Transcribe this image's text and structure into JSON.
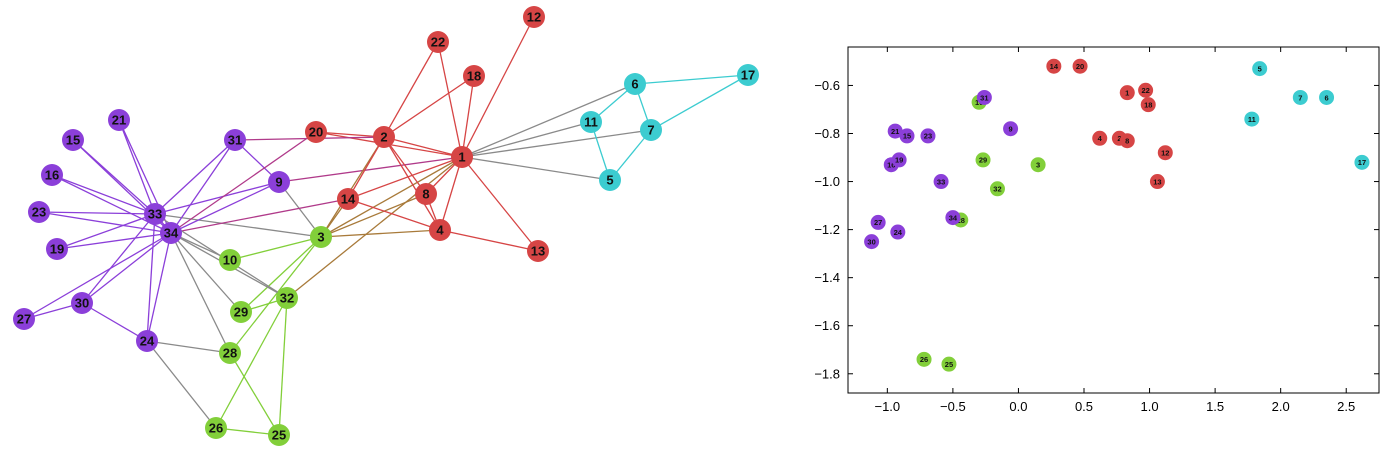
{
  "colors": {
    "purple": "#8b3fd9",
    "red": "#d64545",
    "green": "#82cf3a",
    "cyan": "#3cccd0",
    "gray": "#8a8a8a",
    "magenta": "#b03a8a",
    "brown": "#a87a3a",
    "axis": "#000000"
  },
  "graph": {
    "nodes": [
      {
        "id": "1",
        "group": "red"
      },
      {
        "id": "2",
        "group": "red"
      },
      {
        "id": "3",
        "group": "green"
      },
      {
        "id": "4",
        "group": "red"
      },
      {
        "id": "5",
        "group": "cyan"
      },
      {
        "id": "6",
        "group": "cyan"
      },
      {
        "id": "7",
        "group": "cyan"
      },
      {
        "id": "8",
        "group": "red"
      },
      {
        "id": "9",
        "group": "purple"
      },
      {
        "id": "10",
        "group": "green"
      },
      {
        "id": "11",
        "group": "cyan"
      },
      {
        "id": "12",
        "group": "red"
      },
      {
        "id": "13",
        "group": "red"
      },
      {
        "id": "14",
        "group": "red"
      },
      {
        "id": "15",
        "group": "purple"
      },
      {
        "id": "16",
        "group": "purple"
      },
      {
        "id": "17",
        "group": "cyan"
      },
      {
        "id": "18",
        "group": "red"
      },
      {
        "id": "19",
        "group": "purple"
      },
      {
        "id": "20",
        "group": "red"
      },
      {
        "id": "21",
        "group": "purple"
      },
      {
        "id": "22",
        "group": "red"
      },
      {
        "id": "23",
        "group": "purple"
      },
      {
        "id": "24",
        "group": "purple"
      },
      {
        "id": "25",
        "group": "green"
      },
      {
        "id": "26",
        "group": "green"
      },
      {
        "id": "27",
        "group": "purple"
      },
      {
        "id": "28",
        "group": "green"
      },
      {
        "id": "29",
        "group": "green"
      },
      {
        "id": "30",
        "group": "purple"
      },
      {
        "id": "31",
        "group": "purple"
      },
      {
        "id": "32",
        "group": "green"
      },
      {
        "id": "33",
        "group": "purple"
      },
      {
        "id": "34",
        "group": "purple"
      }
    ],
    "edges": [
      [
        "1",
        "2",
        "red"
      ],
      [
        "1",
        "3",
        "brown"
      ],
      [
        "1",
        "4",
        "red"
      ],
      [
        "1",
        "5",
        "gray"
      ],
      [
        "1",
        "6",
        "gray"
      ],
      [
        "1",
        "7",
        "gray"
      ],
      [
        "1",
        "8",
        "red"
      ],
      [
        "1",
        "9",
        "magenta"
      ],
      [
        "1",
        "11",
        "gray"
      ],
      [
        "1",
        "12",
        "red"
      ],
      [
        "1",
        "13",
        "red"
      ],
      [
        "1",
        "14",
        "red"
      ],
      [
        "1",
        "18",
        "red"
      ],
      [
        "1",
        "20",
        "red"
      ],
      [
        "1",
        "22",
        "red"
      ],
      [
        "1",
        "32",
        "brown"
      ],
      [
        "2",
        "3",
        "brown"
      ],
      [
        "2",
        "4",
        "red"
      ],
      [
        "2",
        "8",
        "red"
      ],
      [
        "2",
        "14",
        "red"
      ],
      [
        "2",
        "18",
        "red"
      ],
      [
        "2",
        "20",
        "red"
      ],
      [
        "2",
        "22",
        "red"
      ],
      [
        "2",
        "31",
        "magenta"
      ],
      [
        "3",
        "4",
        "brown"
      ],
      [
        "3",
        "8",
        "brown"
      ],
      [
        "3",
        "9",
        "gray"
      ],
      [
        "3",
        "10",
        "green"
      ],
      [
        "3",
        "14",
        "brown"
      ],
      [
        "3",
        "28",
        "green"
      ],
      [
        "3",
        "29",
        "green"
      ],
      [
        "3",
        "33",
        "gray"
      ],
      [
        "4",
        "8",
        "red"
      ],
      [
        "4",
        "13",
        "red"
      ],
      [
        "4",
        "14",
        "red"
      ],
      [
        "5",
        "7",
        "cyan"
      ],
      [
        "5",
        "11",
        "cyan"
      ],
      [
        "6",
        "7",
        "cyan"
      ],
      [
        "6",
        "11",
        "cyan"
      ],
      [
        "6",
        "17",
        "cyan"
      ],
      [
        "7",
        "17",
        "cyan"
      ],
      [
        "9",
        "31",
        "purple"
      ],
      [
        "9",
        "33",
        "purple"
      ],
      [
        "9",
        "34",
        "purple"
      ],
      [
        "10",
        "34",
        "gray"
      ],
      [
        "14",
        "34",
        "magenta"
      ],
      [
        "15",
        "33",
        "purple"
      ],
      [
        "15",
        "34",
        "purple"
      ],
      [
        "16",
        "33",
        "purple"
      ],
      [
        "16",
        "34",
        "purple"
      ],
      [
        "19",
        "33",
        "purple"
      ],
      [
        "19",
        "34",
        "purple"
      ],
      [
        "20",
        "34",
        "magenta"
      ],
      [
        "21",
        "33",
        "purple"
      ],
      [
        "21",
        "34",
        "purple"
      ],
      [
        "23",
        "33",
        "purple"
      ],
      [
        "23",
        "34",
        "purple"
      ],
      [
        "24",
        "26",
        "gray"
      ],
      [
        "24",
        "28",
        "gray"
      ],
      [
        "24",
        "30",
        "purple"
      ],
      [
        "24",
        "33",
        "purple"
      ],
      [
        "24",
        "34",
        "purple"
      ],
      [
        "25",
        "26",
        "green"
      ],
      [
        "25",
        "28",
        "green"
      ],
      [
        "25",
        "32",
        "green"
      ],
      [
        "26",
        "32",
        "green"
      ],
      [
        "27",
        "30",
        "purple"
      ],
      [
        "27",
        "34",
        "purple"
      ],
      [
        "28",
        "34",
        "gray"
      ],
      [
        "29",
        "32",
        "green"
      ],
      [
        "29",
        "34",
        "gray"
      ],
      [
        "30",
        "33",
        "purple"
      ],
      [
        "30",
        "34",
        "purple"
      ],
      [
        "31",
        "33",
        "purple"
      ],
      [
        "31",
        "34",
        "purple"
      ],
      [
        "32",
        "33",
        "gray"
      ],
      [
        "32",
        "34",
        "gray"
      ],
      [
        "33",
        "34",
        "purple"
      ]
    ]
  },
  "chart_data": {
    "type": "scatter",
    "title": "",
    "xlabel": "",
    "ylabel": "",
    "xlim": [
      -1.3,
      2.75
    ],
    "ylim": [
      -1.88,
      -0.44
    ],
    "xticks": [
      -1.0,
      -0.5,
      0.0,
      0.5,
      1.0,
      1.5,
      2.0,
      2.5
    ],
    "yticks": [
      -0.6,
      -0.8,
      -1.0,
      -1.2,
      -1.4,
      -1.6,
      -1.8
    ],
    "xtick_labels": [
      "−1.0",
      "−0.5",
      "0.0",
      "0.5",
      "1.0",
      "1.5",
      "2.0",
      "2.5"
    ],
    "ytick_labels": [
      "−0.6",
      "−0.8",
      "−1.0",
      "−1.2",
      "−1.4",
      "−1.6",
      "−1.8"
    ],
    "grid": false,
    "points": [
      {
        "label": "1",
        "x": 0.83,
        "y": -0.63,
        "group": "red"
      },
      {
        "label": "2",
        "x": 0.77,
        "y": -0.82,
        "group": "red"
      },
      {
        "label": "3",
        "x": 0.15,
        "y": -0.93,
        "group": "green"
      },
      {
        "label": "4",
        "x": 0.62,
        "y": -0.82,
        "group": "red"
      },
      {
        "label": "5",
        "x": 1.84,
        "y": -0.53,
        "group": "cyan"
      },
      {
        "label": "6",
        "x": 2.35,
        "y": -0.65,
        "group": "cyan"
      },
      {
        "label": "7",
        "x": 2.15,
        "y": -0.65,
        "group": "cyan"
      },
      {
        "label": "8",
        "x": 0.83,
        "y": -0.83,
        "group": "red"
      },
      {
        "label": "9",
        "x": -0.06,
        "y": -0.78,
        "group": "purple"
      },
      {
        "label": "10",
        "x": -0.3,
        "y": -0.67,
        "group": "green"
      },
      {
        "label": "11",
        "x": 1.78,
        "y": -0.74,
        "group": "cyan"
      },
      {
        "label": "12",
        "x": 1.12,
        "y": -0.88,
        "group": "red"
      },
      {
        "label": "13",
        "x": 1.06,
        "y": -1.0,
        "group": "red"
      },
      {
        "label": "14",
        "x": 0.27,
        "y": -0.52,
        "group": "red"
      },
      {
        "label": "15",
        "x": -0.85,
        "y": -0.81,
        "group": "purple"
      },
      {
        "label": "16",
        "x": -0.97,
        "y": -0.93,
        "group": "purple"
      },
      {
        "label": "17",
        "x": 2.62,
        "y": -0.92,
        "group": "cyan"
      },
      {
        "label": "18",
        "x": 0.99,
        "y": -0.68,
        "group": "red"
      },
      {
        "label": "19",
        "x": -0.91,
        "y": -0.91,
        "group": "purple"
      },
      {
        "label": "20",
        "x": 0.47,
        "y": -0.52,
        "group": "red"
      },
      {
        "label": "21",
        "x": -0.94,
        "y": -0.79,
        "group": "purple"
      },
      {
        "label": "22",
        "x": 0.97,
        "y": -0.62,
        "group": "red"
      },
      {
        "label": "23",
        "x": -0.69,
        "y": -0.81,
        "group": "purple"
      },
      {
        "label": "24",
        "x": -0.92,
        "y": -1.21,
        "group": "purple"
      },
      {
        "label": "25",
        "x": -0.53,
        "y": -1.76,
        "group": "green"
      },
      {
        "label": "26",
        "x": -0.72,
        "y": -1.74,
        "group": "green"
      },
      {
        "label": "27",
        "x": -1.07,
        "y": -1.17,
        "group": "purple"
      },
      {
        "label": "28",
        "x": -0.44,
        "y": -1.16,
        "group": "green"
      },
      {
        "label": "29",
        "x": -0.27,
        "y": -0.91,
        "group": "green"
      },
      {
        "label": "30",
        "x": -1.12,
        "y": -1.25,
        "group": "purple"
      },
      {
        "label": "31",
        "x": -0.26,
        "y": -0.65,
        "group": "purple"
      },
      {
        "label": "32",
        "x": -0.16,
        "y": -1.03,
        "group": "green"
      },
      {
        "label": "33",
        "x": -0.59,
        "y": -1.0,
        "group": "purple"
      },
      {
        "label": "34",
        "x": -0.5,
        "y": -1.15,
        "group": "purple"
      }
    ]
  }
}
